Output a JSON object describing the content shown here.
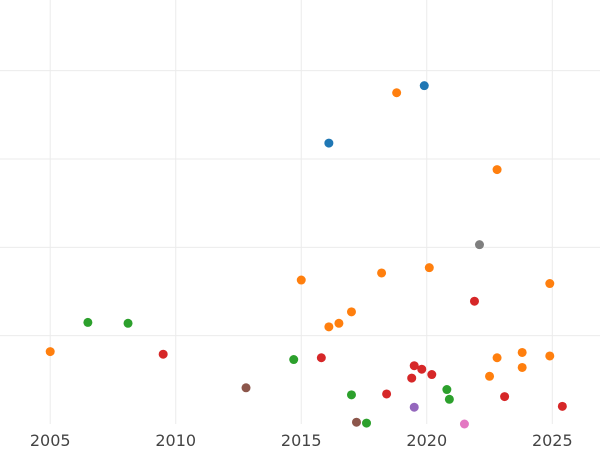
{
  "chart_data": {
    "type": "scatter",
    "title": "",
    "xlabel": "",
    "ylabel": "",
    "xlim": [
      2003,
      2026.9
    ],
    "ylim": [
      0,
      4.8
    ],
    "x_ticks": [
      2005,
      2010,
      2015,
      2020,
      2025
    ],
    "x_tick_labels": [
      "2005",
      "2010",
      "2015",
      "2020",
      "2025"
    ],
    "y_gridlines": [
      1,
      2,
      3,
      4
    ],
    "show_y_tick_labels": false,
    "grid": true,
    "points": [
      {
        "x": 2016.1,
        "y": 3.18,
        "color": "#1f77b4"
      },
      {
        "x": 2019.9,
        "y": 3.83,
        "color": "#1f77b4"
      },
      {
        "x": 2005.0,
        "y": 0.82,
        "color": "#ff7f0e"
      },
      {
        "x": 2015.0,
        "y": 1.63,
        "color": "#ff7f0e"
      },
      {
        "x": 2016.1,
        "y": 1.1,
        "color": "#ff7f0e"
      },
      {
        "x": 2016.5,
        "y": 1.14,
        "color": "#ff7f0e"
      },
      {
        "x": 2017.0,
        "y": 1.27,
        "color": "#ff7f0e"
      },
      {
        "x": 2018.2,
        "y": 1.71,
        "color": "#ff7f0e"
      },
      {
        "x": 2018.8,
        "y": 3.75,
        "color": "#ff7f0e"
      },
      {
        "x": 2020.1,
        "y": 1.77,
        "color": "#ff7f0e"
      },
      {
        "x": 2022.5,
        "y": 0.54,
        "color": "#ff7f0e"
      },
      {
        "x": 2022.8,
        "y": 2.88,
        "color": "#ff7f0e"
      },
      {
        "x": 2022.8,
        "y": 0.75,
        "color": "#ff7f0e"
      },
      {
        "x": 2023.8,
        "y": 0.81,
        "color": "#ff7f0e"
      },
      {
        "x": 2023.8,
        "y": 0.64,
        "color": "#ff7f0e"
      },
      {
        "x": 2024.9,
        "y": 1.59,
        "color": "#ff7f0e"
      },
      {
        "x": 2024.9,
        "y": 0.77,
        "color": "#ff7f0e"
      },
      {
        "x": 2006.5,
        "y": 1.15,
        "color": "#2ca02c"
      },
      {
        "x": 2008.1,
        "y": 1.14,
        "color": "#2ca02c"
      },
      {
        "x": 2014.7,
        "y": 0.73,
        "color": "#2ca02c"
      },
      {
        "x": 2017.0,
        "y": 0.33,
        "color": "#2ca02c"
      },
      {
        "x": 2017.6,
        "y": 0.01,
        "color": "#2ca02c"
      },
      {
        "x": 2020.8,
        "y": 0.39,
        "color": "#2ca02c"
      },
      {
        "x": 2020.9,
        "y": 0.28,
        "color": "#2ca02c"
      },
      {
        "x": 2009.5,
        "y": 0.79,
        "color": "#d62728"
      },
      {
        "x": 2015.8,
        "y": 0.75,
        "color": "#d62728"
      },
      {
        "x": 2018.4,
        "y": 0.34,
        "color": "#d62728"
      },
      {
        "x": 2019.4,
        "y": 0.52,
        "color": "#d62728"
      },
      {
        "x": 2019.5,
        "y": 0.66,
        "color": "#d62728"
      },
      {
        "x": 2019.8,
        "y": 0.62,
        "color": "#d62728"
      },
      {
        "x": 2020.2,
        "y": 0.56,
        "color": "#d62728"
      },
      {
        "x": 2021.9,
        "y": 1.39,
        "color": "#d62728"
      },
      {
        "x": 2023.1,
        "y": 0.31,
        "color": "#d62728"
      },
      {
        "x": 2025.4,
        "y": 0.2,
        "color": "#d62728"
      },
      {
        "x": 2019.5,
        "y": 0.19,
        "color": "#9467bd"
      },
      {
        "x": 2012.8,
        "y": 0.41,
        "color": "#8c564b"
      },
      {
        "x": 2017.2,
        "y": 0.02,
        "color": "#8c564b"
      },
      {
        "x": 2021.5,
        "y": 0.0,
        "color": "#e377c2"
      },
      {
        "x": 2022.1,
        "y": 2.03,
        "color": "#7f7f7f"
      }
    ]
  }
}
